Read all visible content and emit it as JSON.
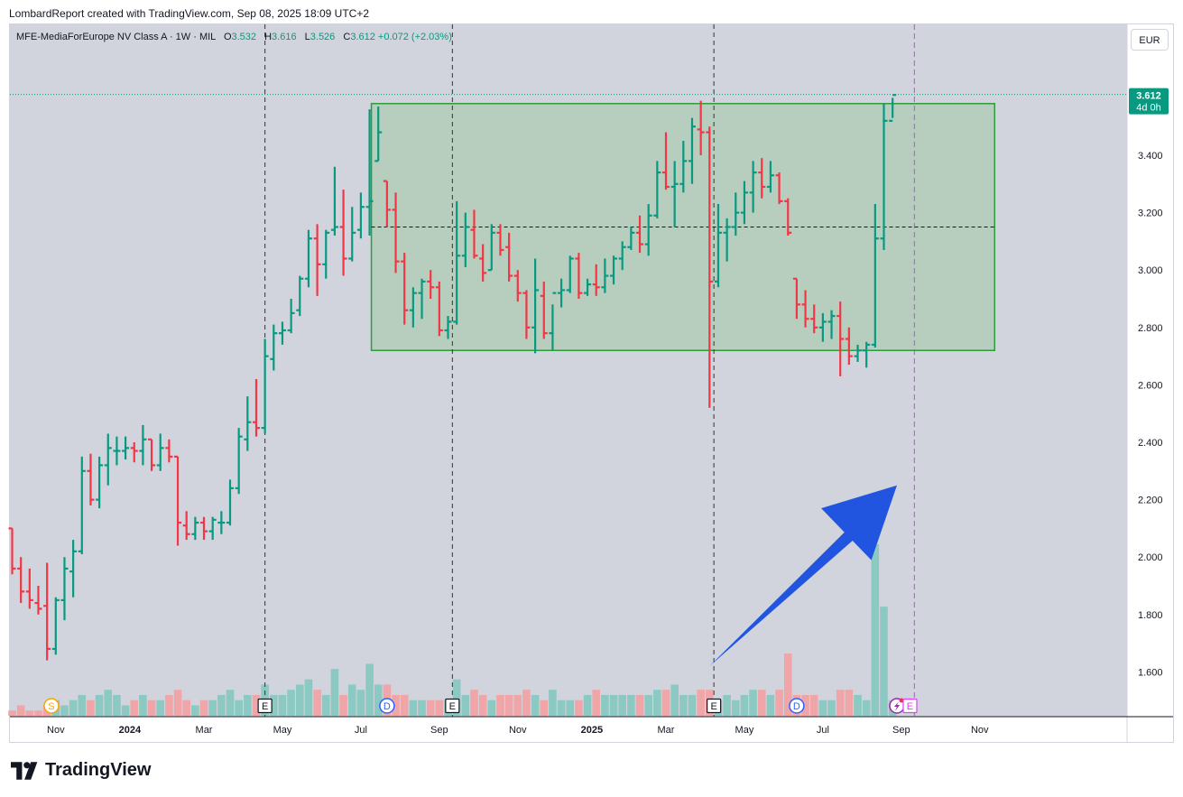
{
  "header": {
    "credit": "LombardReport created with TradingView.com, Sep 08, 2025 18:09 UTC+2"
  },
  "legend": {
    "symbol": "MFE-MediaForEurope NV Class A · 1W · MIL",
    "o_label": "O",
    "o_value": "3.532",
    "h_label": "H",
    "h_value": "3.616",
    "l_label": "L",
    "l_value": "3.526",
    "c_label": "C",
    "c_value": "3.612",
    "change": "+0.072 (+2.03%)"
  },
  "currency": "EUR",
  "price_tag": {
    "price": "3.612",
    "countdown": "4d 0h"
  },
  "brand": "TradingView",
  "colors": {
    "up": "#089981",
    "down": "#f23645",
    "vol_up": "#8cc9c2",
    "vol_down": "#f0a5a8",
    "background": "#d1d4dc",
    "range_fill": "#b3cdb8",
    "range_stroke": "#2e9c3c",
    "arrow": "#2155e0",
    "event_line": "#333333",
    "future_line": "#c146f0"
  },
  "chart_data": {
    "type": "ohlc-bar",
    "interval": "1W",
    "ylim": [
      1.45,
      3.78
    ],
    "y_ticks": [
      "3.400",
      "3.200",
      "3.000",
      "2.800",
      "2.600",
      "2.400",
      "2.200",
      "2.000",
      "1.800",
      "1.600"
    ],
    "x_ticks": [
      {
        "label": "Nov",
        "bold": false,
        "bar": 5
      },
      {
        "label": "2024",
        "bold": true,
        "bar": 13.5
      },
      {
        "label": "Mar",
        "bold": false,
        "bar": 22
      },
      {
        "label": "May",
        "bold": false,
        "bar": 31
      },
      {
        "label": "Jul",
        "bold": false,
        "bar": 40
      },
      {
        "label": "Sep",
        "bold": false,
        "bar": 49
      },
      {
        "label": "Nov",
        "bold": false,
        "bar": 58
      },
      {
        "label": "2025",
        "bold": true,
        "bar": 66.5
      },
      {
        "label": "Mar",
        "bold": false,
        "bar": 75
      },
      {
        "label": "May",
        "bold": false,
        "bar": 84
      },
      {
        "label": "Jul",
        "bold": false,
        "bar": 93
      },
      {
        "label": "Sep",
        "bold": false,
        "bar": 102
      },
      {
        "label": "Nov",
        "bold": false,
        "bar": 111
      }
    ],
    "range_box": {
      "from_bar": 41,
      "to_bar": 112.5,
      "low": 2.72,
      "high": 3.58,
      "mid": 3.15
    },
    "event_lines_bar": [
      29,
      50.5,
      80.5
    ],
    "future_line_bar": 103.5,
    "arrow": {
      "from": {
        "bar": 80,
        "price": 1.62
      },
      "to": {
        "bar": 101.5,
        "price": 2.25
      }
    },
    "events": [
      {
        "bar": 4.5,
        "label": "S",
        "kind": "split"
      },
      {
        "bar": 29,
        "label": "E",
        "kind": "earnings"
      },
      {
        "bar": 43,
        "label": "D",
        "kind": "dividend"
      },
      {
        "bar": 50.5,
        "label": "E",
        "kind": "earnings"
      },
      {
        "bar": 80.5,
        "label": "E",
        "kind": "earnings"
      },
      {
        "bar": 90,
        "label": "D",
        "kind": "dividend"
      },
      {
        "bar": 101.5,
        "label": "",
        "kind": "flash"
      },
      {
        "bar": 103,
        "label": "E",
        "kind": "earnings-future"
      }
    ],
    "bars": [
      [
        2.1,
        2.1,
        1.94,
        1.96,
        1
      ],
      [
        1.96,
        2.0,
        1.84,
        1.88,
        2
      ],
      [
        1.88,
        1.96,
        1.82,
        1.85,
        1
      ],
      [
        1.84,
        1.9,
        1.8,
        1.82,
        1
      ],
      [
        1.83,
        1.98,
        1.64,
        1.68,
        2
      ],
      [
        1.68,
        1.86,
        1.66,
        1.85,
        3
      ],
      [
        1.85,
        2.0,
        1.78,
        1.96,
        2
      ],
      [
        1.95,
        2.06,
        1.86,
        2.02,
        3
      ],
      [
        2.02,
        2.35,
        2.01,
        2.3,
        4
      ],
      [
        2.3,
        2.36,
        2.18,
        2.2,
        3
      ],
      [
        2.2,
        2.35,
        2.17,
        2.32,
        4
      ],
      [
        2.32,
        2.43,
        2.25,
        2.38,
        5
      ],
      [
        2.37,
        2.42,
        2.32,
        2.37,
        4
      ],
      [
        2.37,
        2.42,
        2.34,
        2.38,
        2
      ],
      [
        2.38,
        2.4,
        2.33,
        2.37,
        3
      ],
      [
        2.37,
        2.46,
        2.32,
        2.41,
        4
      ],
      [
        2.41,
        2.41,
        2.3,
        2.32,
        3
      ],
      [
        2.32,
        2.43,
        2.3,
        2.38,
        3
      ],
      [
        2.38,
        2.41,
        2.33,
        2.35,
        4
      ],
      [
        2.35,
        2.35,
        2.04,
        2.12,
        5
      ],
      [
        2.11,
        2.16,
        2.06,
        2.08,
        3
      ],
      [
        2.08,
        2.14,
        2.06,
        2.12,
        2
      ],
      [
        2.12,
        2.14,
        2.06,
        2.09,
        3
      ],
      [
        2.09,
        2.14,
        2.06,
        2.13,
        3
      ],
      [
        2.12,
        2.16,
        2.08,
        2.12,
        4
      ],
      [
        2.12,
        2.27,
        2.11,
        2.24,
        5
      ],
      [
        2.24,
        2.45,
        2.22,
        2.42,
        3
      ],
      [
        2.41,
        2.56,
        2.37,
        2.47,
        4
      ],
      [
        2.47,
        2.62,
        2.42,
        2.45,
        4
      ],
      [
        2.45,
        2.76,
        2.43,
        2.7,
        6
      ],
      [
        2.69,
        2.81,
        2.65,
        2.78,
        4
      ],
      [
        2.78,
        2.82,
        2.74,
        2.79,
        4
      ],
      [
        2.79,
        2.9,
        2.78,
        2.85,
        5
      ],
      [
        2.86,
        2.98,
        2.84,
        2.97,
        6
      ],
      [
        2.97,
        3.14,
        2.94,
        3.11,
        7
      ],
      [
        3.11,
        3.16,
        2.91,
        3.02,
        5
      ],
      [
        3.02,
        3.14,
        2.97,
        3.13,
        4
      ],
      [
        3.14,
        3.36,
        3.12,
        3.15,
        9
      ],
      [
        3.15,
        3.28,
        2.98,
        3.04,
        4
      ],
      [
        3.04,
        3.22,
        3.03,
        3.13,
        6
      ],
      [
        3.14,
        3.27,
        3.11,
        3.22,
        5
      ],
      [
        3.22,
        3.56,
        3.12,
        3.24,
        10
      ],
      [
        3.38,
        3.57,
        3.38,
        3.48,
        6
      ],
      [
        3.31,
        3.31,
        3.15,
        3.21,
        6
      ],
      [
        3.21,
        3.27,
        2.99,
        3.03,
        4
      ],
      [
        3.03,
        3.06,
        2.81,
        2.86,
        4
      ],
      [
        2.86,
        2.94,
        2.8,
        2.92,
        3
      ],
      [
        2.92,
        2.97,
        2.83,
        2.96,
        3
      ],
      [
        2.96,
        3.0,
        2.9,
        2.94,
        3
      ],
      [
        2.94,
        2.96,
        2.77,
        2.79,
        3
      ],
      [
        2.79,
        2.84,
        2.76,
        2.82,
        3
      ],
      [
        2.82,
        3.24,
        2.81,
        3.05,
        7
      ],
      [
        3.05,
        3.2,
        3.01,
        3.15,
        4
      ],
      [
        3.14,
        3.21,
        3.04,
        3.05,
        5
      ],
      [
        3.04,
        3.09,
        2.96,
        2.99,
        4
      ],
      [
        3.0,
        3.16,
        3.0,
        3.13,
        3
      ],
      [
        3.13,
        3.16,
        3.05,
        3.07,
        4
      ],
      [
        3.08,
        3.13,
        2.96,
        2.98,
        4
      ],
      [
        2.98,
        3.0,
        2.89,
        2.92,
        4
      ],
      [
        2.92,
        2.93,
        2.76,
        2.8,
        5
      ],
      [
        2.8,
        3.04,
        2.71,
        2.93,
        4
      ],
      [
        2.91,
        2.96,
        2.76,
        2.78,
        3
      ],
      [
        2.78,
        2.88,
        2.72,
        2.92,
        5
      ],
      [
        2.92,
        2.97,
        2.87,
        2.93,
        3
      ],
      [
        2.93,
        3.05,
        2.92,
        3.04,
        3
      ],
      [
        3.04,
        3.06,
        2.9,
        2.92,
        3
      ],
      [
        2.92,
        2.97,
        2.91,
        2.95,
        4
      ],
      [
        2.95,
        3.02,
        2.91,
        2.94,
        5
      ],
      [
        2.94,
        3.04,
        2.92,
        2.98,
        4
      ],
      [
        2.98,
        3.05,
        2.95,
        3.04,
        4
      ],
      [
        3.04,
        3.1,
        3.0,
        3.08,
        4
      ],
      [
        3.08,
        3.15,
        3.07,
        3.13,
        4
      ],
      [
        3.13,
        3.19,
        3.06,
        3.09,
        4
      ],
      [
        3.09,
        3.23,
        3.05,
        3.19,
        4
      ],
      [
        3.19,
        3.38,
        3.18,
        3.34,
        5
      ],
      [
        3.34,
        3.48,
        3.28,
        3.29,
        5
      ],
      [
        3.29,
        3.38,
        3.15,
        3.3,
        6
      ],
      [
        3.3,
        3.45,
        3.27,
        3.38,
        4
      ],
      [
        3.38,
        3.53,
        3.3,
        3.5,
        4
      ],
      [
        3.49,
        3.59,
        3.4,
        3.48,
        5
      ],
      [
        3.48,
        3.5,
        2.52,
        2.96,
        5
      ],
      [
        2.96,
        3.23,
        2.94,
        3.13,
        3
      ],
      [
        3.13,
        3.18,
        3.03,
        3.15,
        4
      ],
      [
        3.15,
        3.27,
        3.12,
        3.2,
        3
      ],
      [
        3.2,
        3.31,
        3.16,
        3.27,
        4
      ],
      [
        3.27,
        3.38,
        3.2,
        3.34,
        5
      ],
      [
        3.34,
        3.39,
        3.25,
        3.29,
        5
      ],
      [
        3.29,
        3.38,
        3.27,
        3.33,
        4
      ],
      [
        3.33,
        3.34,
        3.23,
        3.24,
        5
      ],
      [
        3.24,
        3.25,
        3.12,
        3.13,
        12
      ],
      [
        2.97,
        2.97,
        2.83,
        2.88,
        4
      ],
      [
        2.88,
        2.93,
        2.8,
        2.83,
        4
      ],
      [
        2.83,
        2.88,
        2.78,
        2.8,
        4
      ],
      [
        2.8,
        2.85,
        2.75,
        2.82,
        3
      ],
      [
        2.82,
        2.86,
        2.76,
        2.84,
        3
      ],
      [
        2.84,
        2.89,
        2.63,
        2.76,
        5
      ],
      [
        2.76,
        2.8,
        2.67,
        2.7,
        5
      ],
      [
        2.7,
        2.74,
        2.68,
        2.72,
        4
      ],
      [
        2.72,
        2.75,
        2.66,
        2.74,
        3
      ],
      [
        2.74,
        3.23,
        2.73,
        3.11,
        33
      ],
      [
        3.11,
        3.58,
        3.07,
        3.52,
        21
      ],
      [
        3.52,
        3.6,
        3.53,
        3.61,
        3
      ]
    ],
    "vol_scale_max": 33
  }
}
